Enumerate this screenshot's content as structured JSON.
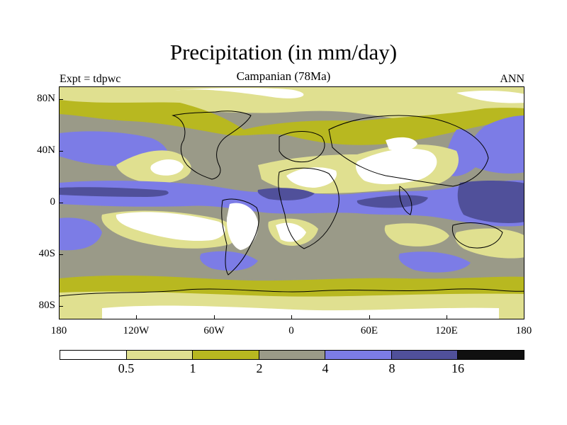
{
  "title": "Precipitation (in mm/day)",
  "subtitle": "Campanian (78Ma)",
  "left_label": "Expt = tdpwc",
  "right_label": "ANN",
  "y_ticks": [
    "80N",
    "40N",
    "0",
    "40S",
    "80S"
  ],
  "x_ticks": [
    "180",
    "120W",
    "60W",
    "0",
    "60E",
    "120E",
    "180"
  ],
  "colorbar": {
    "labels": [
      "0.5",
      "1",
      "2",
      "4",
      "8",
      "16"
    ],
    "colors": [
      "#ffffff",
      "#e0e090",
      "#b8b820",
      "#9a9a88",
      "#7c7ce6",
      "#50509a",
      "#101010"
    ]
  },
  "palette": {
    "white": "#ffffff",
    "lightyellow": "#e0e090",
    "olive": "#b8b820",
    "gray": "#9a9a88",
    "blue": "#7c7ce6",
    "darkblue": "#50509a",
    "coast": "#000000"
  }
}
